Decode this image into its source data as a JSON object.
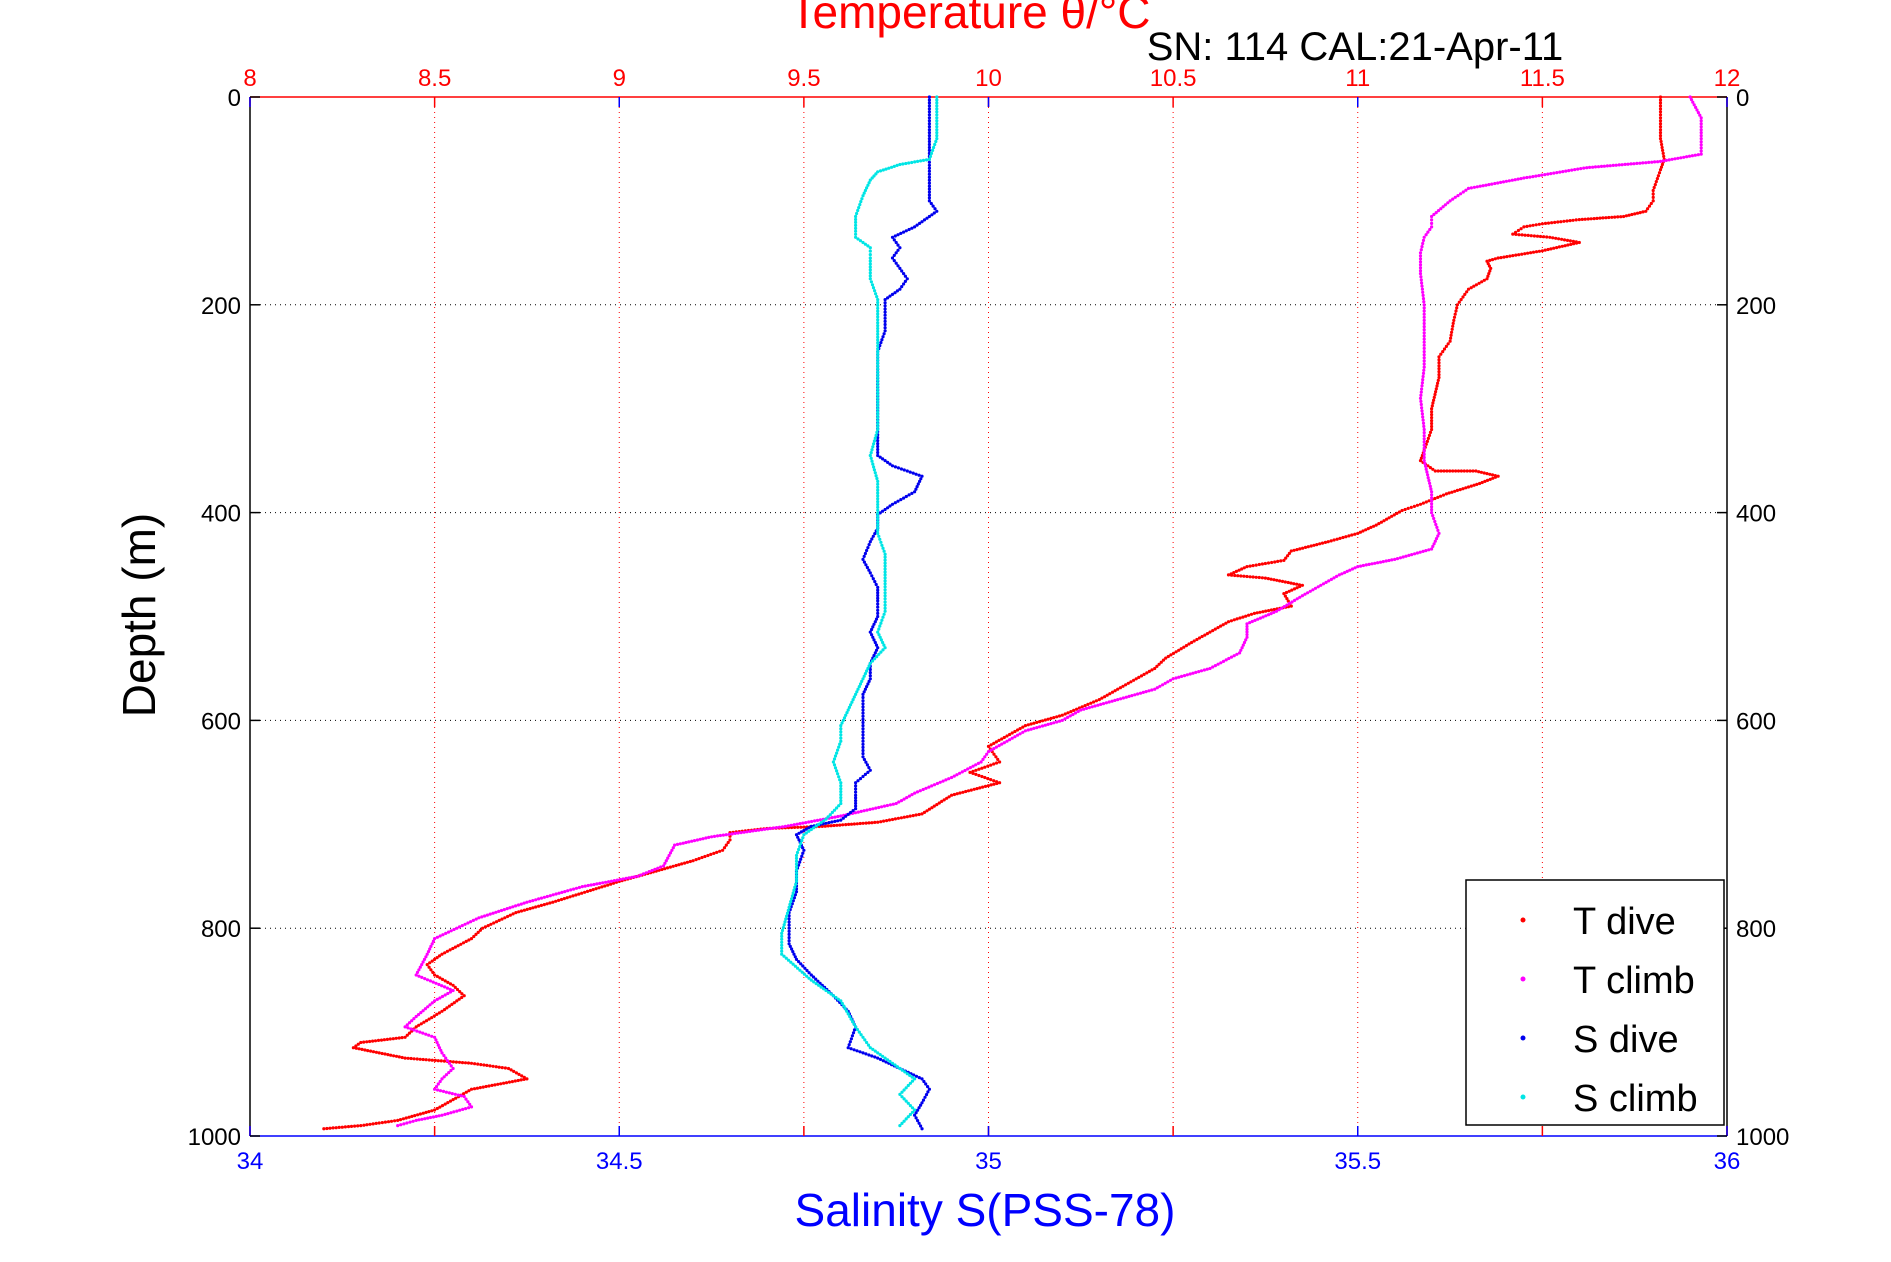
{
  "chart_data": {
    "type": "scatter",
    "title": "Temperature θ/°C",
    "subtitle": "SN: 114  CAL:21-Apr-11",
    "ylabel": "Depth (m)",
    "xlabel_bottom": "Salinity S(PSS-78)",
    "xlim_top": [
      8,
      12
    ],
    "xlim_bottom": [
      34,
      36
    ],
    "ylim": [
      0,
      1000
    ],
    "y_reversed": true,
    "top_ticks": [
      "8",
      "8.5",
      "9",
      "9.5",
      "10",
      "10.5",
      "11",
      "11.5",
      "12"
    ],
    "bottom_ticks": [
      "34",
      "34.5",
      "35",
      "35.5",
      "36"
    ],
    "y_ticks": [
      "0",
      "200",
      "400",
      "600",
      "800",
      "1000"
    ],
    "grid": true,
    "legend_position": "bottom-right",
    "colors": {
      "t_dive": "#ff0000",
      "t_climb": "#ff00ff",
      "s_dive": "#0000ee",
      "s_climb": "#00e5e5",
      "top_axis": "#ff0000",
      "bottom_axis": "#0000ff"
    },
    "series": [
      {
        "name": "T dive",
        "axis": "top",
        "points": [
          [
            11.82,
            0
          ],
          [
            11.82,
            20
          ],
          [
            11.82,
            40
          ],
          [
            11.83,
            60
          ],
          [
            11.82,
            70
          ],
          [
            11.8,
            90
          ],
          [
            11.8,
            100
          ],
          [
            11.78,
            110
          ],
          [
            11.72,
            115
          ],
          [
            11.6,
            118
          ],
          [
            11.5,
            122
          ],
          [
            11.45,
            125
          ],
          [
            11.42,
            132
          ],
          [
            11.52,
            135
          ],
          [
            11.6,
            140
          ],
          [
            11.5,
            148
          ],
          [
            11.38,
            155
          ],
          [
            11.35,
            158
          ],
          [
            11.36,
            165
          ],
          [
            11.35,
            175
          ],
          [
            11.3,
            185
          ],
          [
            11.27,
            200
          ],
          [
            11.26,
            215
          ],
          [
            11.25,
            235
          ],
          [
            11.22,
            250
          ],
          [
            11.22,
            270
          ],
          [
            11.2,
            300
          ],
          [
            11.2,
            320
          ],
          [
            11.18,
            340
          ],
          [
            11.17,
            350
          ],
          [
            11.21,
            360
          ],
          [
            11.32,
            360
          ],
          [
            11.38,
            365
          ],
          [
            11.33,
            372
          ],
          [
            11.24,
            382
          ],
          [
            11.17,
            392
          ],
          [
            11.12,
            398
          ],
          [
            11.05,
            412
          ],
          [
            11,
            420
          ],
          [
            10.92,
            428
          ],
          [
            10.82,
            437
          ],
          [
            10.8,
            446
          ],
          [
            10.7,
            452
          ],
          [
            10.65,
            460
          ],
          [
            10.75,
            463
          ],
          [
            10.85,
            470
          ],
          [
            10.8,
            478
          ],
          [
            10.82,
            490
          ],
          [
            10.72,
            497
          ],
          [
            10.65,
            505
          ],
          [
            10.6,
            515
          ],
          [
            10.55,
            525
          ],
          [
            10.48,
            540
          ],
          [
            10.45,
            550
          ],
          [
            10.4,
            560
          ],
          [
            10.35,
            570
          ],
          [
            10.3,
            580
          ],
          [
            10.2,
            595
          ],
          [
            10.1,
            605
          ],
          [
            10,
            625
          ],
          [
            10.03,
            640
          ],
          [
            9.95,
            650
          ],
          [
            10.03,
            660
          ],
          [
            9.9,
            672
          ],
          [
            9.82,
            690
          ],
          [
            9.7,
            698
          ],
          [
            9.55,
            702
          ],
          [
            9.4,
            704
          ],
          [
            9.3,
            708
          ],
          [
            9.3,
            715
          ],
          [
            9.28,
            725
          ],
          [
            9.2,
            735
          ],
          [
            9,
            755
          ],
          [
            8.82,
            775
          ],
          [
            8.72,
            785
          ],
          [
            8.63,
            800
          ],
          [
            8.6,
            810
          ],
          [
            8.52,
            825
          ],
          [
            8.48,
            835
          ],
          [
            8.5,
            845
          ],
          [
            8.55,
            855
          ],
          [
            8.58,
            865
          ],
          [
            8.52,
            880
          ],
          [
            8.45,
            895
          ],
          [
            8.42,
            905
          ],
          [
            8.3,
            910
          ],
          [
            8.28,
            915
          ],
          [
            8.42,
            925
          ],
          [
            8.6,
            930
          ],
          [
            8.7,
            935
          ],
          [
            8.75,
            945
          ],
          [
            8.6,
            955
          ],
          [
            8.55,
            965
          ],
          [
            8.5,
            975
          ],
          [
            8.4,
            985
          ],
          [
            8.3,
            990
          ],
          [
            8.2,
            993
          ]
        ]
      },
      {
        "name": "T climb",
        "axis": "top",
        "points": [
          [
            11.9,
            0
          ],
          [
            11.93,
            20
          ],
          [
            11.93,
            40
          ],
          [
            11.93,
            55
          ],
          [
            11.82,
            62
          ],
          [
            11.62,
            68
          ],
          [
            11.45,
            78
          ],
          [
            11.3,
            88
          ],
          [
            11.25,
            100
          ],
          [
            11.2,
            115
          ],
          [
            11.2,
            125
          ],
          [
            11.18,
            135
          ],
          [
            11.17,
            150
          ],
          [
            11.17,
            170
          ],
          [
            11.18,
            200
          ],
          [
            11.18,
            230
          ],
          [
            11.18,
            260
          ],
          [
            11.17,
            290
          ],
          [
            11.18,
            320
          ],
          [
            11.18,
            350
          ],
          [
            11.2,
            380
          ],
          [
            11.2,
            400
          ],
          [
            11.22,
            420
          ],
          [
            11.2,
            435
          ],
          [
            11.1,
            445
          ],
          [
            11,
            452
          ],
          [
            10.95,
            460
          ],
          [
            10.9,
            470
          ],
          [
            10.85,
            480
          ],
          [
            10.78,
            495
          ],
          [
            10.7,
            507
          ],
          [
            10.7,
            520
          ],
          [
            10.68,
            535
          ],
          [
            10.6,
            550
          ],
          [
            10.5,
            560
          ],
          [
            10.45,
            570
          ],
          [
            10.35,
            580
          ],
          [
            10.25,
            590
          ],
          [
            10.2,
            600
          ],
          [
            10.1,
            610
          ],
          [
            10.05,
            620
          ],
          [
            10,
            630
          ],
          [
            9.98,
            640
          ],
          [
            9.9,
            655
          ],
          [
            9.8,
            670
          ],
          [
            9.75,
            680
          ],
          [
            9.6,
            692
          ],
          [
            9.45,
            702
          ],
          [
            9.25,
            712
          ],
          [
            9.15,
            720
          ],
          [
            9.12,
            740
          ],
          [
            9.05,
            750
          ],
          [
            8.9,
            760
          ],
          [
            8.75,
            775
          ],
          [
            8.62,
            790
          ],
          [
            8.5,
            810
          ],
          [
            8.48,
            825
          ],
          [
            8.45,
            845
          ],
          [
            8.55,
            860
          ],
          [
            8.5,
            870
          ],
          [
            8.45,
            885
          ],
          [
            8.42,
            895
          ],
          [
            8.5,
            905
          ],
          [
            8.52,
            920
          ],
          [
            8.55,
            935
          ],
          [
            8.52,
            945
          ],
          [
            8.5,
            955
          ],
          [
            8.58,
            962
          ],
          [
            8.6,
            972
          ],
          [
            8.52,
            980
          ],
          [
            8.45,
            985
          ],
          [
            8.4,
            990
          ]
        ]
      },
      {
        "name": "S dive",
        "axis": "bottom",
        "points": [
          [
            34.92,
            0
          ],
          [
            34.92,
            20
          ],
          [
            34.92,
            40
          ],
          [
            34.92,
            60
          ],
          [
            34.92,
            80
          ],
          [
            34.92,
            100
          ],
          [
            34.93,
            110
          ],
          [
            34.9,
            125
          ],
          [
            34.87,
            135
          ],
          [
            34.88,
            145
          ],
          [
            34.87,
            155
          ],
          [
            34.88,
            165
          ],
          [
            34.89,
            175
          ],
          [
            34.88,
            185
          ],
          [
            34.86,
            195
          ],
          [
            34.86,
            210
          ],
          [
            34.86,
            225
          ],
          [
            34.85,
            245
          ],
          [
            34.85,
            265
          ],
          [
            34.85,
            285
          ],
          [
            34.85,
            305
          ],
          [
            34.85,
            325
          ],
          [
            34.85,
            345
          ],
          [
            34.87,
            355
          ],
          [
            34.91,
            365
          ],
          [
            34.9,
            380
          ],
          [
            34.87,
            392
          ],
          [
            34.85,
            402
          ],
          [
            34.85,
            415
          ],
          [
            34.84,
            428
          ],
          [
            34.83,
            445
          ],
          [
            34.84,
            458
          ],
          [
            34.85,
            472
          ],
          [
            34.85,
            485
          ],
          [
            34.85,
            500
          ],
          [
            34.84,
            515
          ],
          [
            34.85,
            530
          ],
          [
            34.84,
            545
          ],
          [
            34.84,
            560
          ],
          [
            34.83,
            575
          ],
          [
            34.83,
            590
          ],
          [
            34.83,
            605
          ],
          [
            34.83,
            620
          ],
          [
            34.83,
            635
          ],
          [
            34.84,
            648
          ],
          [
            34.82,
            660
          ],
          [
            34.82,
            672
          ],
          [
            34.82,
            685
          ],
          [
            34.8,
            696
          ],
          [
            34.76,
            702
          ],
          [
            34.74,
            710
          ],
          [
            34.75,
            725
          ],
          [
            34.74,
            745
          ],
          [
            34.74,
            765
          ],
          [
            34.73,
            785
          ],
          [
            34.73,
            800
          ],
          [
            34.73,
            815
          ],
          [
            34.74,
            830
          ],
          [
            34.76,
            845
          ],
          [
            34.79,
            865
          ],
          [
            34.81,
            880
          ],
          [
            34.82,
            895
          ],
          [
            34.81,
            915
          ],
          [
            34.85,
            925
          ],
          [
            34.88,
            935
          ],
          [
            34.91,
            945
          ],
          [
            34.92,
            955
          ],
          [
            34.91,
            968
          ],
          [
            34.9,
            980
          ],
          [
            34.91,
            993
          ]
        ]
      },
      {
        "name": "S climb",
        "axis": "bottom",
        "points": [
          [
            34.93,
            0
          ],
          [
            34.93,
            20
          ],
          [
            34.93,
            40
          ],
          [
            34.92,
            60
          ],
          [
            34.88,
            65
          ],
          [
            34.85,
            72
          ],
          [
            34.84,
            80
          ],
          [
            34.83,
            95
          ],
          [
            34.82,
            115
          ],
          [
            34.82,
            135
          ],
          [
            34.84,
            145
          ],
          [
            34.84,
            155
          ],
          [
            34.84,
            175
          ],
          [
            34.85,
            195
          ],
          [
            34.85,
            220
          ],
          [
            34.85,
            245
          ],
          [
            34.85,
            270
          ],
          [
            34.85,
            295
          ],
          [
            34.85,
            320
          ],
          [
            34.84,
            345
          ],
          [
            34.85,
            370
          ],
          [
            34.85,
            395
          ],
          [
            34.85,
            420
          ],
          [
            34.86,
            440
          ],
          [
            34.86,
            460
          ],
          [
            34.86,
            480
          ],
          [
            34.86,
            495
          ],
          [
            34.85,
            515
          ],
          [
            34.86,
            530
          ],
          [
            34.84,
            545
          ],
          [
            34.83,
            560
          ],
          [
            34.82,
            575
          ],
          [
            34.81,
            590
          ],
          [
            34.8,
            605
          ],
          [
            34.8,
            620
          ],
          [
            34.79,
            640
          ],
          [
            34.8,
            660
          ],
          [
            34.8,
            680
          ],
          [
            34.78,
            695
          ],
          [
            34.75,
            710
          ],
          [
            34.74,
            730
          ],
          [
            34.74,
            755
          ],
          [
            34.73,
            780
          ],
          [
            34.72,
            805
          ],
          [
            34.72,
            825
          ],
          [
            34.76,
            850
          ],
          [
            34.8,
            870
          ],
          [
            34.82,
            895
          ],
          [
            34.84,
            915
          ],
          [
            34.87,
            930
          ],
          [
            34.9,
            945
          ],
          [
            34.88,
            960
          ],
          [
            34.9,
            975
          ],
          [
            34.88,
            990
          ]
        ]
      }
    ]
  }
}
